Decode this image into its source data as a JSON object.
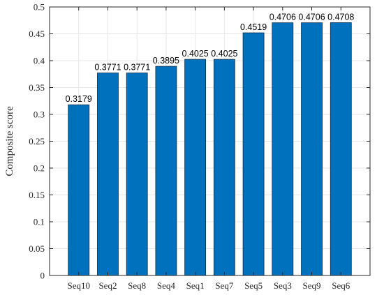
{
  "chart_data": {
    "type": "bar",
    "title": "",
    "xlabel": "",
    "ylabel": "Composite score",
    "categories": [
      "Seq10",
      "Seq2",
      "Seq8",
      "Seq4",
      "Seq1",
      "Seq7",
      "Seq5",
      "Seq3",
      "Seq9",
      "Seq6"
    ],
    "values": [
      0.3179,
      0.3771,
      0.3771,
      0.3895,
      0.4025,
      0.4025,
      0.4519,
      0.4706,
      0.4706,
      0.4708
    ],
    "data_labels": [
      "0.3179",
      "0.3771",
      "0.3771",
      "0.3895",
      "0.4025",
      "0.4025",
      "0.4519",
      "0.4706",
      "0.4706",
      "0.4708"
    ],
    "ylim": [
      0,
      0.5
    ],
    "yticks": [
      0,
      0.05,
      0.1,
      0.15,
      0.2,
      0.25,
      0.3,
      0.35,
      0.4,
      0.45,
      0.5
    ],
    "ytick_labels": [
      "0",
      "0.05",
      "0.1",
      "0.15",
      "0.2",
      "0.25",
      "0.3",
      "0.35",
      "0.4",
      "0.45",
      "0.5"
    ],
    "grid": true,
    "bar_color": "#0072BD"
  }
}
